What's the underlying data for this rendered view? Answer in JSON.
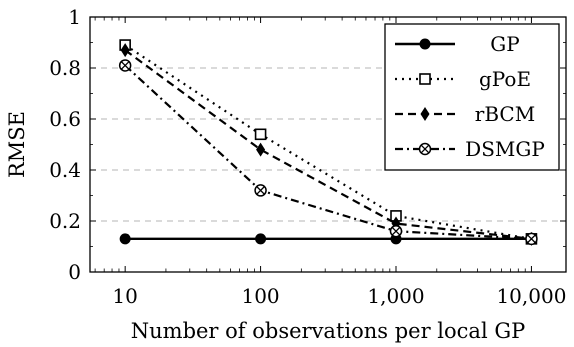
{
  "chart_data": {
    "type": "line",
    "title": "",
    "xlabel": "Number of observations per local GP",
    "ylabel": "RMSE",
    "x_scale": "log",
    "x": [
      10,
      100,
      1000,
      10000
    ],
    "x_tick_labels": [
      "10",
      "100",
      "1,000",
      "10,000"
    ],
    "xlim": [
      5.5,
      18000
    ],
    "ylim": [
      0,
      1
    ],
    "y_ticks": [
      0,
      0.2,
      0.4,
      0.6,
      0.8,
      1
    ],
    "y_tick_labels": [
      "0",
      "0.2",
      "0.4",
      "0.6",
      "0.8",
      "1"
    ],
    "grid": "horizontal dashed",
    "legend_position": "top-right",
    "series": [
      {
        "name": "GP",
        "values": [
          0.13,
          0.13,
          0.13,
          0.13
        ],
        "line_style": "solid",
        "marker": "filled-circle"
      },
      {
        "name": "gPoE",
        "values": [
          0.89,
          0.54,
          0.22,
          0.13
        ],
        "line_style": "dotted",
        "marker": "open-square"
      },
      {
        "name": "rBCM",
        "values": [
          0.87,
          0.48,
          0.19,
          0.13
        ],
        "line_style": "dashed",
        "marker": "diamond"
      },
      {
        "name": "DSMGP",
        "values": [
          0.81,
          0.32,
          0.16,
          0.13
        ],
        "line_style": "dash-dot",
        "marker": "crossed-circle"
      }
    ]
  }
}
